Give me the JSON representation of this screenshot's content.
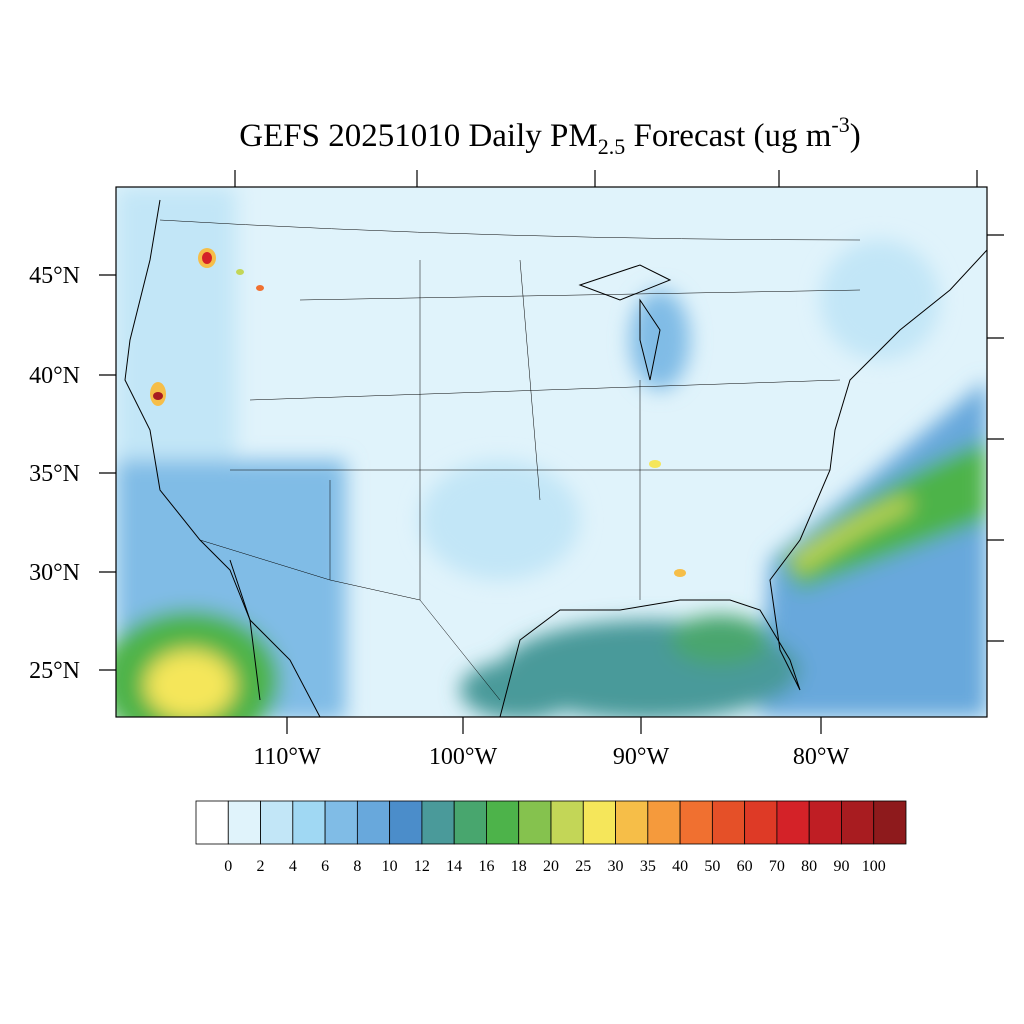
{
  "title": {
    "main": "GEFS 20251010 Daily PM",
    "sub": "2.5",
    "rest": " Forecast (ug m",
    "sup": "-3",
    "end": ")"
  },
  "map": {
    "lat_labels": [
      "45°N",
      "40°N",
      "35°N",
      "30°N",
      "25°N"
    ],
    "lon_labels": [
      "110°W",
      "100°W",
      "90°W",
      "80°W"
    ]
  },
  "colorbar": {
    "levels": [
      0,
      2,
      4,
      6,
      8,
      10,
      12,
      14,
      16,
      18,
      20,
      25,
      30,
      35,
      40,
      50,
      60,
      70,
      80,
      90,
      100
    ],
    "colors": [
      "#ffffff",
      "#e0f3fb",
      "#c2e6f7",
      "#a0d8f3",
      "#80bce6",
      "#68a8dc",
      "#4b8dca",
      "#4a9a9a",
      "#48a66e",
      "#4db34a",
      "#85c24e",
      "#c3d657",
      "#f5e65a",
      "#f6be48",
      "#f59a3c",
      "#f07030",
      "#e55028",
      "#de3a26",
      "#d42228",
      "#bf1e24",
      "#a81c20",
      "#8e1a1c"
    ]
  }
}
